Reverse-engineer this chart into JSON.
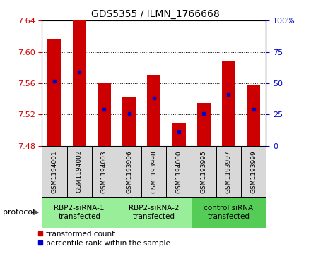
{
  "title": "GDS5355 / ILMN_1766668",
  "samples": [
    "GSM1194001",
    "GSM1194002",
    "GSM1194003",
    "GSM1193996",
    "GSM1193998",
    "GSM1194000",
    "GSM1193995",
    "GSM1193997",
    "GSM1193999"
  ],
  "transformed_count": [
    7.617,
    7.64,
    7.56,
    7.542,
    7.571,
    7.51,
    7.535,
    7.588,
    7.558
  ],
  "percentile_rank": [
    7.563,
    7.574,
    7.527,
    7.521,
    7.541,
    7.498,
    7.521,
    7.546,
    7.527
  ],
  "bar_bottom": 7.48,
  "ylim": [
    7.48,
    7.64
  ],
  "yticks": [
    7.48,
    7.52,
    7.56,
    7.6,
    7.64
  ],
  "y2ticks": [
    0,
    25,
    50,
    75,
    100
  ],
  "bar_color": "#cc0000",
  "percentile_color": "#0000cc",
  "groups": [
    {
      "label": "RBP2-siRNA-1\ntransfected",
      "start": 0,
      "end": 3,
      "color": "#99ee99"
    },
    {
      "label": "RBP2-siRNA-2\ntransfected",
      "start": 3,
      "end": 6,
      "color": "#99ee99"
    },
    {
      "label": "control siRNA\ntransfected",
      "start": 6,
      "end": 9,
      "color": "#55cc55"
    }
  ],
  "bar_width": 0.55,
  "sample_box_color": "#d8d8d8",
  "legend_labels": [
    "transformed count",
    "percentile rank within the sample"
  ],
  "legend_colors": [
    "#cc0000",
    "#0000cc"
  ],
  "protocol_label": "protocol",
  "title_fontsize": 10
}
